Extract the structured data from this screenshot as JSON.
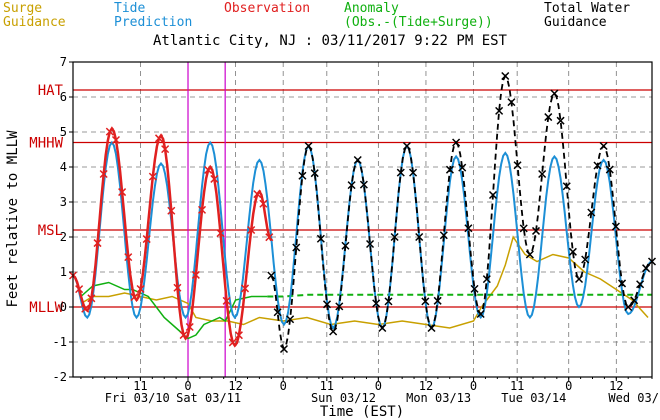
{
  "chart_data": {
    "type": "line",
    "title": "Atlantic City, NJ : 03/11/2017 9:22 PM EST",
    "xlabel": "Time (EST)",
    "ylabel": "Feet relative to MLLW",
    "ylim": [
      -2,
      7
    ],
    "yticks": [
      -2,
      -1,
      0,
      1,
      2,
      3,
      4,
      5,
      6,
      7
    ],
    "xlim_hours": [
      -29,
      117
    ],
    "x_tick_labels": [
      "11",
      "0",
      "12",
      "0",
      "11",
      "0",
      "12",
      "0",
      "11",
      "0",
      "12"
    ],
    "x_tick_hours": [
      -12,
      0,
      12,
      24,
      35,
      48,
      60,
      72,
      83,
      96,
      108
    ],
    "day_labels": [
      "Fri 03/10",
      "Sat 03/11",
      "Sun 03/12",
      "Mon 03/13",
      "Tue 03/14",
      "Wed 03/"
    ],
    "day_label_hours": [
      -21,
      -3,
      31,
      55,
      79,
      106
    ],
    "vertical_markers_hours": [
      0,
      9.37
    ],
    "datum_lines": [
      {
        "label": "HAT",
        "value": 6.2
      },
      {
        "label": "MHHW",
        "value": 4.7
      },
      {
        "label": "MSL",
        "value": 2.2
      },
      {
        "label": "MLLW",
        "value": 0
      }
    ],
    "colors": {
      "surge": "#c8a000",
      "prediction": "#1c8fd6",
      "observation": "#e02020",
      "anomaly": "#10b010",
      "total": "#000000",
      "datum": "#cc0000",
      "marker": "#cc00cc"
    },
    "series": [
      {
        "name": "Surge Guidance",
        "x": [
          -27,
          -24,
          -20,
          -16,
          -12,
          -8,
          -4,
          0,
          2,
          6,
          10,
          14,
          18,
          24,
          30,
          36,
          42,
          48,
          54,
          60,
          66,
          72,
          74,
          78,
          80,
          82,
          85,
          88,
          92,
          96,
          100,
          104,
          108,
          112,
          116
        ],
        "y": [
          0.1,
          0.3,
          0.3,
          0.4,
          0.3,
          0.2,
          0.3,
          0.1,
          -0.3,
          -0.4,
          -0.4,
          -0.5,
          -0.3,
          -0.4,
          -0.3,
          -0.5,
          -0.4,
          -0.5,
          -0.4,
          -0.5,
          -0.6,
          -0.4,
          0,
          0.6,
          1.2,
          2,
          1.5,
          1.3,
          1.5,
          1.4,
          1.0,
          0.8,
          0.5,
          0.2,
          -0.3
        ]
      },
      {
        "name": "Anomaly",
        "x": [
          -27,
          -24,
          -20,
          -16,
          -14,
          -10,
          -6,
          -2,
          0,
          2,
          4,
          6,
          8,
          9.4,
          12,
          16,
          20,
          24,
          30,
          40,
          50,
          60,
          70,
          80,
          90,
          100,
          110,
          117
        ],
        "y": [
          0.3,
          0.6,
          0.7,
          0.5,
          0.5,
          0.3,
          -0.3,
          -0.7,
          -0.9,
          -0.8,
          -0.5,
          -0.4,
          -0.3,
          -0.4,
          0.2,
          0.3,
          0.3,
          0.3,
          0.35,
          0.35,
          0.35,
          0.35,
          0.35,
          0.35,
          0.35,
          0.35,
          0.35,
          0.35
        ]
      },
      {
        "name": "Tide Prediction",
        "high_low": [
          [
            -29,
            0.9
          ],
          [
            -25.4,
            -0.3
          ],
          [
            -19.2,
            4.7
          ],
          [
            -13.0,
            -0.3
          ],
          [
            -6.8,
            4.1
          ],
          [
            -0.6,
            -0.3
          ],
          [
            5.6,
            4.7
          ],
          [
            11.8,
            -0.3
          ],
          [
            18.0,
            4.2
          ],
          [
            24.2,
            -0.5
          ],
          [
            30.4,
            4.6
          ],
          [
            36.6,
            -0.6
          ],
          [
            42.8,
            4.2
          ],
          [
            49.0,
            -0.6
          ],
          [
            55.2,
            4.6
          ],
          [
            61.4,
            -0.6
          ],
          [
            67.6,
            4.3
          ],
          [
            73.8,
            -0.3
          ],
          [
            80.0,
            4.4
          ],
          [
            86.2,
            -0.3
          ],
          [
            92.4,
            4.3
          ],
          [
            98.6,
            0
          ],
          [
            104.8,
            4.2
          ],
          [
            111.0,
            -0.2
          ],
          [
            117,
            1.3
          ]
        ]
      },
      {
        "name": "Observation",
        "high_low": [
          [
            -29,
            0.9
          ],
          [
            -25.4,
            -0.1
          ],
          [
            -19.2,
            5.1
          ],
          [
            -13.0,
            0.2
          ],
          [
            -6.8,
            4.9
          ],
          [
            -0.6,
            -0.9
          ],
          [
            5.6,
            4.0
          ],
          [
            11.8,
            -1.1
          ],
          [
            18.0,
            3.3
          ],
          [
            21.0,
            1.9
          ]
        ]
      },
      {
        "name": "Total Water Guidance",
        "high_low": [
          [
            21.0,
            0.9
          ],
          [
            24.2,
            -1.2
          ],
          [
            30.4,
            4.6
          ],
          [
            36.6,
            -0.7
          ],
          [
            42.8,
            4.2
          ],
          [
            49.0,
            -0.6
          ],
          [
            55.2,
            4.6
          ],
          [
            61.4,
            -0.6
          ],
          [
            67.6,
            4.7
          ],
          [
            73.8,
            -0.2
          ],
          [
            80.0,
            6.6
          ],
          [
            86.2,
            1.5
          ],
          [
            92.4,
            6.1
          ],
          [
            98.6,
            0.8
          ],
          [
            104.8,
            4.6
          ],
          [
            111.0,
            0
          ],
          [
            117,
            1.3
          ]
        ]
      }
    ]
  },
  "legend": {
    "surge": {
      "line1": "Surge",
      "line2": "Guidance"
    },
    "tide": {
      "line1": "Tide",
      "line2": "Prediction"
    },
    "observation": {
      "line1": "Observation"
    },
    "anomaly": {
      "line1": "Anomaly",
      "line2": "(Obs.-(Tide+Surge))"
    },
    "total": {
      "line1": "Total Water",
      "line2": "Guidance"
    }
  }
}
